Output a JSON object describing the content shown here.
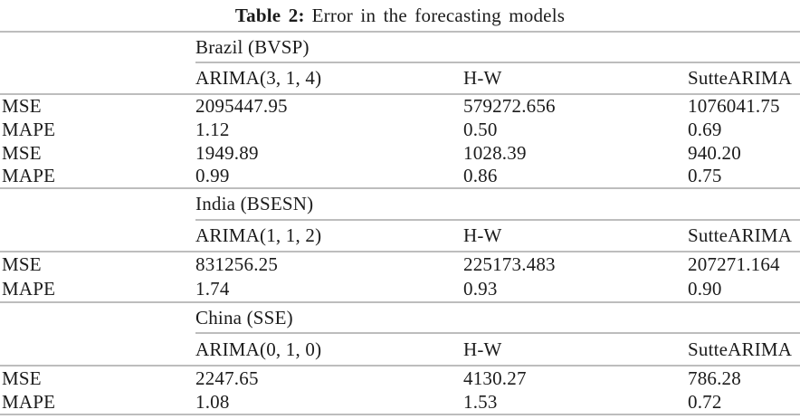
{
  "caption": {
    "label": "Table 2:",
    "text": "Error in the forecasting models"
  },
  "colors": {
    "text": "#1b1b1b",
    "rule": "#bdbdbd",
    "background": "#ffffff"
  },
  "sections": [
    {
      "market": "Brazil (BVSP)",
      "headers": [
        "ARIMA(3, 1, 4)",
        "H-W",
        "SutteARIMA"
      ],
      "rows": [
        {
          "metric": "MSE",
          "values": [
            "2095447.95",
            "579272.656",
            "1076041.75"
          ]
        },
        {
          "metric": "MAPE",
          "values": [
            "1.12",
            "0.50",
            "0.69"
          ]
        },
        {
          "metric": "MSE",
          "values": [
            "1949.89",
            "1028.39",
            "940.20"
          ]
        },
        {
          "metric": "MAPE",
          "values": [
            "0.99",
            "0.86",
            "0.75"
          ]
        }
      ]
    },
    {
      "market": "India (BSESN)",
      "headers": [
        "ARIMA(1, 1, 2)",
        "H-W",
        "SutteARIMA"
      ],
      "rows": [
        {
          "metric": "MSE",
          "values": [
            "831256.25",
            "225173.483",
            "207271.164"
          ]
        },
        {
          "metric": "MAPE",
          "values": [
            "1.74",
            "0.93",
            "0.90"
          ]
        }
      ]
    },
    {
      "market": "China (SSE)",
      "headers": [
        "ARIMA(0, 1, 0)",
        "H-W",
        "SutteARIMA"
      ],
      "rows": [
        {
          "metric": "MSE",
          "values": [
            "2247.65",
            "4130.27",
            "786.28"
          ]
        },
        {
          "metric": "MAPE",
          "values": [
            "1.08",
            "1.53",
            "0.72"
          ]
        }
      ]
    }
  ]
}
